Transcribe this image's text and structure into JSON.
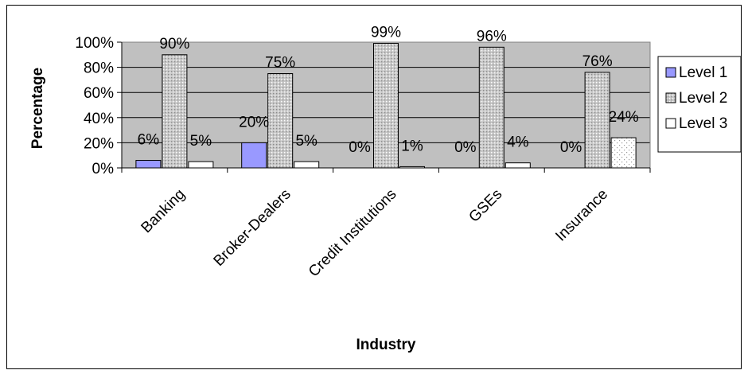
{
  "chart_data": {
    "type": "bar",
    "title": "",
    "xlabel": "Industry",
    "ylabel": "Percentage",
    "categories": [
      "Banking",
      "Broker-Dealers",
      "Credit Institutions",
      "GSEs",
      "Insurance"
    ],
    "series": [
      {
        "name": "Level 1",
        "values": [
          6,
          20,
          0,
          0,
          0
        ],
        "labels": [
          "6%",
          "20%",
          "0%",
          "0%",
          "0%"
        ],
        "color": "#9999ff"
      },
      {
        "name": "Level 2",
        "values": [
          90,
          75,
          99,
          96,
          76
        ],
        "labels": [
          "90%",
          "75%",
          "99%",
          "96%",
          "76%"
        ],
        "color": "#c0c0c0"
      },
      {
        "name": "Level 3",
        "values": [
          5,
          5,
          1,
          4,
          24
        ],
        "labels": [
          "5%",
          "5%",
          "1%",
          "4%",
          "24%"
        ],
        "color": "#ffffff"
      }
    ],
    "ylim": [
      0,
      100
    ],
    "yticks": [
      "0%",
      "20%",
      "40%",
      "60%",
      "80%",
      "100%"
    ],
    "plot_background": "#c0c0c0",
    "grid": true,
    "legend_position": "right"
  }
}
